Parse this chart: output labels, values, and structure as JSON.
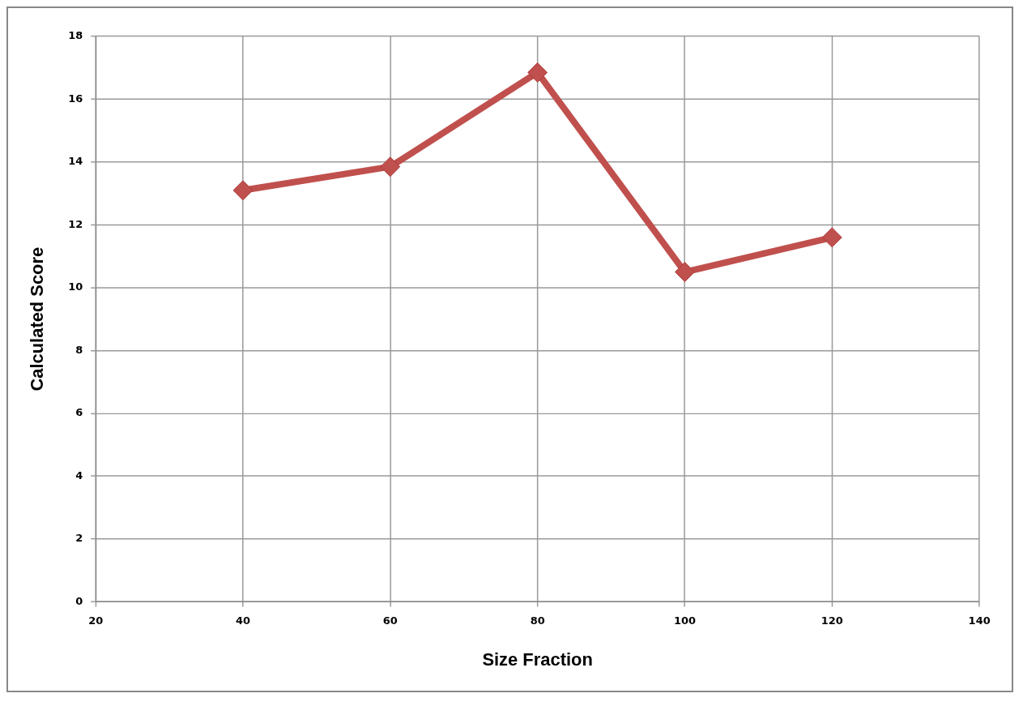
{
  "chart_data": {
    "type": "line",
    "xlabel": "Size Fraction",
    "ylabel": "Calculated Score",
    "x": [
      40,
      60,
      80,
      100,
      120
    ],
    "series": [
      {
        "color": "#c0504d",
        "values": [
          13.1,
          13.85,
          16.85,
          10.5,
          11.6
        ]
      }
    ],
    "xlim": [
      20,
      140
    ],
    "xticks": [
      20,
      40,
      60,
      80,
      100,
      120,
      140
    ],
    "ylim": [
      0,
      18
    ],
    "yticks": [
      0,
      2,
      4,
      6,
      8,
      10,
      12,
      14,
      16,
      18
    ],
    "grid": true,
    "legend": false,
    "marker": "diamond",
    "line_style": "solid"
  }
}
